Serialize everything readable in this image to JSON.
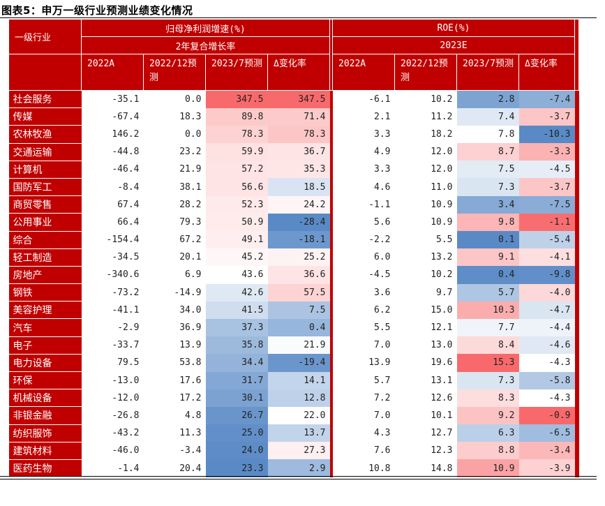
{
  "title": "图表5：申万一级行业预测业绩变化情况",
  "header": {
    "industry": "一级行业",
    "group1": "归母净利润增速(%)",
    "group1_sub": "2年复合增长率",
    "group2": "ROE(%)",
    "group2_sub": "2023E",
    "cols": [
      "2022A",
      "2022/12预测",
      "2023/7预测",
      "Δ变化率"
    ]
  },
  "rows": [
    {
      "name": "社会服务",
      "v": [
        "-35.1",
        "0.0",
        "347.5",
        "347.5",
        "-6.1",
        "10.2",
        "2.8",
        "-7.4"
      ]
    },
    {
      "name": "传媒",
      "v": [
        "-67.4",
        "18.3",
        "89.8",
        "71.4",
        "2.1",
        "11.2",
        "7.4",
        "-3.7"
      ]
    },
    {
      "name": "农林牧渔",
      "v": [
        "146.2",
        "0.0",
        "78.3",
        "78.3",
        "3.3",
        "18.2",
        "7.8",
        "-10.3"
      ]
    },
    {
      "name": "交通运输",
      "v": [
        "-44.8",
        "23.2",
        "59.9",
        "36.7",
        "4.9",
        "12.0",
        "8.7",
        "-3.3"
      ]
    },
    {
      "name": "计算机",
      "v": [
        "-46.4",
        "21.9",
        "57.2",
        "35.3",
        "3.3",
        "12.0",
        "7.5",
        "-4.5"
      ]
    },
    {
      "name": "国防军工",
      "v": [
        "-8.4",
        "38.1",
        "56.6",
        "18.5",
        "4.6",
        "11.0",
        "7.3",
        "-3.7"
      ]
    },
    {
      "name": "商贸零售",
      "v": [
        "67.4",
        "28.2",
        "52.3",
        "24.2",
        "-1.1",
        "10.9",
        "3.4",
        "-7.5"
      ]
    },
    {
      "name": "公用事业",
      "v": [
        "66.4",
        "79.3",
        "50.9",
        "-28.4",
        "5.6",
        "10.9",
        "9.8",
        "-1.1"
      ]
    },
    {
      "name": "综合",
      "v": [
        "-154.4",
        "67.2",
        "49.1",
        "-18.1",
        "-2.2",
        "5.5",
        "0.1",
        "-5.4"
      ]
    },
    {
      "name": "轻工制造",
      "v": [
        "-34.5",
        "20.1",
        "45.2",
        "25.2",
        "6.0",
        "13.2",
        "9.1",
        "-4.1"
      ]
    },
    {
      "name": "房地产",
      "v": [
        "-340.6",
        "6.9",
        "43.6",
        "36.6",
        "-4.5",
        "10.2",
        "0.4",
        "-9.8"
      ]
    },
    {
      "name": "钢铁",
      "v": [
        "-73.2",
        "-14.9",
        "42.6",
        "57.5",
        "3.6",
        "9.7",
        "5.7",
        "-4.0"
      ]
    },
    {
      "name": "美容护理",
      "v": [
        "-41.1",
        "34.0",
        "41.5",
        "7.5",
        "6.2",
        "15.0",
        "10.3",
        "-4.7"
      ]
    },
    {
      "name": "汽车",
      "v": [
        "-2.9",
        "36.9",
        "37.3",
        "0.4",
        "5.5",
        "12.1",
        "7.7",
        "-4.4"
      ]
    },
    {
      "name": "电子",
      "v": [
        "-33.7",
        "13.9",
        "35.8",
        "21.9",
        "7.0",
        "13.0",
        "8.4",
        "-4.6"
      ]
    },
    {
      "name": "电力设备",
      "v": [
        "79.5",
        "53.8",
        "34.4",
        "-19.4",
        "13.9",
        "19.6",
        "15.3",
        "-4.3"
      ]
    },
    {
      "name": "环保",
      "v": [
        "-13.0",
        "17.6",
        "31.7",
        "14.1",
        "5.7",
        "13.1",
        "7.3",
        "-5.8"
      ]
    },
    {
      "name": "机械设备",
      "v": [
        "-12.0",
        "17.2",
        "30.1",
        "12.8",
        "7.2",
        "12.6",
        "8.3",
        "-4.3"
      ]
    },
    {
      "name": "非银金融",
      "v": [
        "-26.8",
        "4.8",
        "26.7",
        "22.0",
        "7.0",
        "10.1",
        "9.2",
        "-0.9"
      ]
    },
    {
      "name": "纺织服饰",
      "v": [
        "-43.2",
        "11.3",
        "25.0",
        "13.7",
        "4.3",
        "12.7",
        "6.3",
        "-6.5"
      ]
    },
    {
      "name": "建筑材料",
      "v": [
        "-46.0",
        "-3.4",
        "24.0",
        "27.3",
        "7.6",
        "12.3",
        "8.8",
        "-3.4"
      ]
    },
    {
      "name": "医药生物",
      "v": [
        "-1.4",
        "20.4",
        "23.3",
        "2.9",
        "10.8",
        "14.8",
        "10.9",
        "-3.9"
      ]
    }
  ],
  "heat_colors": {
    "high": "#f8696b",
    "mid": "#ffffff",
    "low": "#5a8ac6"
  }
}
